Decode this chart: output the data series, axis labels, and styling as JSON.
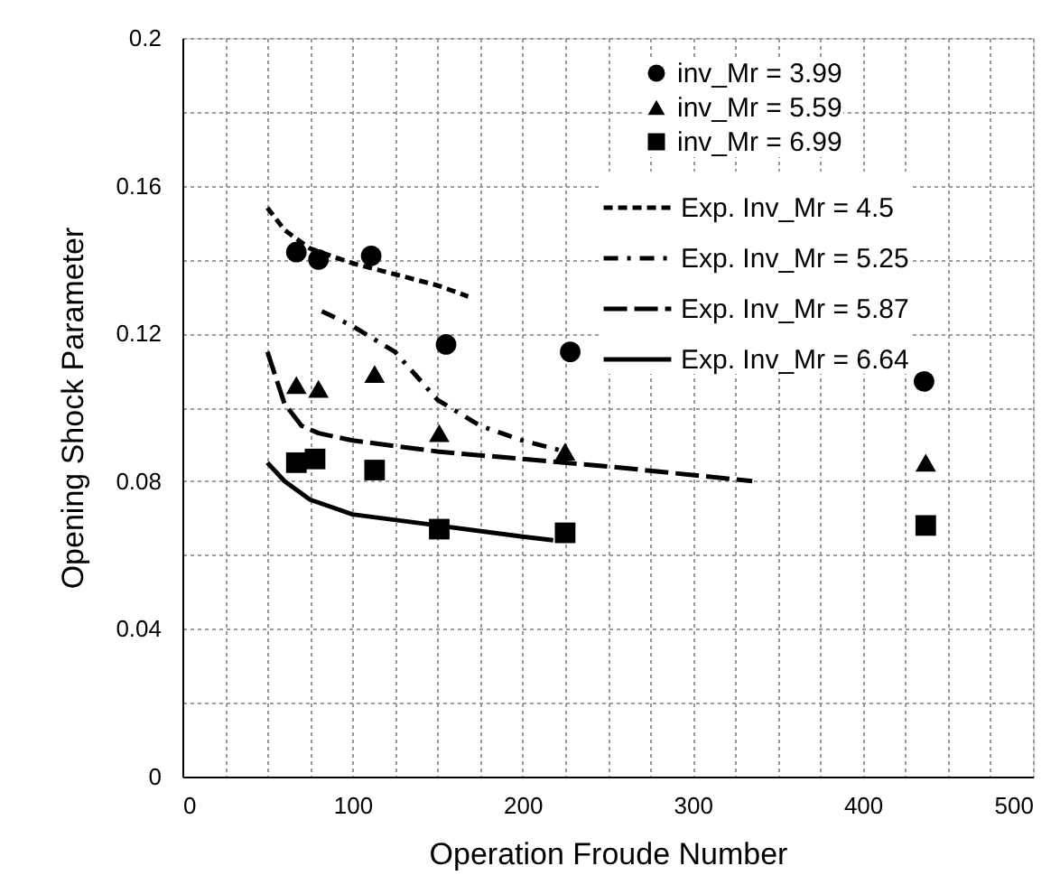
{
  "chart_data": {
    "type": "scatter",
    "xlabel": "Operation Froude Number",
    "ylabel": "Opening Shock Parameter",
    "xlim": [
      0,
      500
    ],
    "ylim": [
      0,
      0.2
    ],
    "xticks": [
      0,
      {
        "value": 25,
        "label": null
      },
      100,
      {
        "value": 50,
        "label": null
      },
      {
        "value": 75,
        "label": null
      },
      {
        "value": 125,
        "label": null
      },
      {
        "value": 150,
        "label": null
      },
      {
        "value": 175,
        "label": null
      },
      200,
      {
        "value": 225,
        "label": null
      },
      {
        "value": 250,
        "label": null
      },
      {
        "value": 275,
        "label": null
      },
      300,
      {
        "value": 325,
        "label": null
      },
      {
        "value": 350,
        "label": null
      },
      {
        "value": 375,
        "label": null
      },
      400,
      {
        "value": 425,
        "label": null
      },
      {
        "value": 450,
        "label": null
      },
      {
        "value": 475,
        "label": null
      },
      500
    ],
    "yticks": [
      0,
      {
        "value": 0.02,
        "label": null
      },
      0.04,
      {
        "value": 0.06,
        "label": null
      },
      0.08,
      {
        "value": 0.1,
        "label": null
      },
      0.12,
      {
        "value": 0.14,
        "label": null
      },
      0.16,
      {
        "value": 0.18,
        "label": null
      },
      0.2
    ],
    "grid": true,
    "legend": "top right",
    "series": [
      {
        "name": "inv_Mr = 3.99",
        "marker": "circle",
        "color": "#000000",
        "x": [
          67,
          80,
          111,
          155,
          228,
          436
        ],
        "values": [
          0.142,
          0.14,
          0.141,
          0.117,
          0.115,
          0.107
        ]
      },
      {
        "name": "inv_Mr = 5.59",
        "marker": "triangle",
        "color": "#000000",
        "x": [
          67,
          80,
          113,
          151,
          225,
          437
        ],
        "values": [
          0.106,
          0.105,
          0.109,
          0.093,
          0.088,
          0.085
        ]
      },
      {
        "name": "inv_Mr = 6.99",
        "marker": "square",
        "color": "#000000",
        "x": [
          67,
          78,
          113,
          151,
          225,
          437
        ],
        "values": [
          0.085,
          0.086,
          0.083,
          0.067,
          0.066,
          0.068
        ]
      },
      {
        "name": "Exp. Inv_Mr = 4.5",
        "type": "line",
        "line_style": "dashed",
        "color": "#000000",
        "x": [
          50,
          60,
          75,
          100,
          125,
          150,
          168
        ],
        "values": [
          0.154,
          0.148,
          0.143,
          0.139,
          0.136,
          0.133,
          0.13
        ]
      },
      {
        "name": "Exp. Inv_Mr = 5.25",
        "type": "line",
        "line_style": "dashdot",
        "color": "#000000",
        "x": [
          82,
          100,
          125,
          150,
          175,
          200,
          225
        ],
        "values": [
          0.126,
          0.122,
          0.115,
          0.102,
          0.095,
          0.091,
          0.088
        ]
      },
      {
        "name": "Exp. Inv_Mr = 5.87",
        "type": "line",
        "line_style": "longdash",
        "color": "#000000",
        "x": [
          50,
          55,
          60,
          70,
          80,
          100,
          150,
          200,
          250,
          335
        ],
        "values": [
          0.115,
          0.108,
          0.101,
          0.095,
          0.093,
          0.091,
          0.088,
          0.086,
          0.084,
          0.08
        ]
      },
      {
        "name": "Exp. Inv_Mr = 6.64",
        "type": "line",
        "line_style": "solid",
        "color": "#000000",
        "x": [
          50,
          60,
          75,
          100,
          150,
          200,
          218
        ],
        "values": [
          0.085,
          0.08,
          0.075,
          0.071,
          0.068,
          0.065,
          0.064
        ]
      }
    ]
  }
}
